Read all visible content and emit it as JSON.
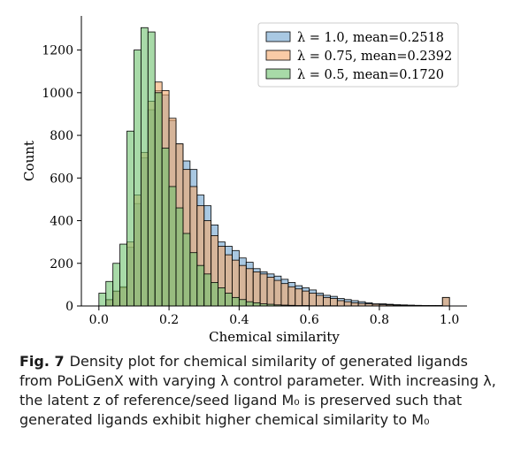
{
  "chart_data": {
    "type": "histogram",
    "xlabel": "Chemical similarity",
    "ylabel": "Count",
    "xlim": [
      -0.05,
      1.05
    ],
    "ylim": [
      0,
      1360
    ],
    "xticks": [
      0.0,
      0.2,
      0.4,
      0.6,
      0.8,
      1.0
    ],
    "xtick_labels": [
      "0.0",
      "0.2",
      "0.4",
      "0.6",
      "0.8",
      "1.0"
    ],
    "yticks": [
      0,
      200,
      400,
      600,
      800,
      1000,
      1200
    ],
    "ytick_labels": [
      "0",
      "200",
      "400",
      "600",
      "800",
      "1000",
      "1200"
    ],
    "bin_start": 0.0,
    "bin_width": 0.02,
    "legend_position": "upper right",
    "grid": false,
    "series": [
      {
        "name": "λ = 1.0, mean=0.2518",
        "color": "#6fa3cf",
        "values": [
          0,
          28,
          68,
          85,
          275,
          480,
          695,
          920,
          1010,
          990,
          870,
          760,
          680,
          640,
          520,
          470,
          380,
          300,
          280,
          260,
          225,
          205,
          175,
          160,
          150,
          140,
          125,
          110,
          95,
          85,
          75,
          60,
          50,
          45,
          35,
          30,
          25,
          20,
          15,
          10,
          10,
          8,
          6,
          5,
          4,
          3,
          2,
          2,
          2,
          40
        ]
      },
      {
        "name": "λ = 0.75, mean=0.2392",
        "color": "#f5a86b",
        "values": [
          0,
          30,
          70,
          90,
          300,
          520,
          720,
          960,
          1050,
          1010,
          880,
          760,
          640,
          560,
          470,
          400,
          330,
          280,
          240,
          215,
          190,
          175,
          160,
          150,
          135,
          120,
          105,
          90,
          80,
          70,
          60,
          50,
          40,
          35,
          25,
          20,
          15,
          12,
          10,
          8,
          6,
          5,
          4,
          3,
          2,
          2,
          2,
          2,
          2,
          40
        ]
      },
      {
        "name": "λ = 0.5, mean=0.1720",
        "color": "#6ec26e",
        "values": [
          60,
          115,
          200,
          290,
          820,
          1200,
          1305,
          1285,
          1000,
          740,
          560,
          460,
          340,
          250,
          190,
          150,
          110,
          85,
          60,
          40,
          30,
          20,
          15,
          10,
          8,
          5,
          4,
          3,
          2,
          2,
          1,
          1,
          1,
          1,
          0,
          0,
          0,
          0,
          0,
          0,
          0,
          0,
          0,
          0,
          0,
          0,
          0,
          0,
          0,
          0
        ]
      }
    ]
  },
  "caption": {
    "label": "Fig. 7",
    "text": "Density plot for chemical similarity of generated ligands from PoLiGenX with varying λ control parameter. With increasing λ, the latent z of reference/seed ligand M₀ is preserved such that generated ligands exhibit higher chemical similarity to M₀"
  }
}
